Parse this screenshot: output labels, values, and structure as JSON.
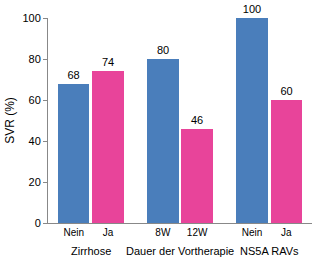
{
  "chart_data": {
    "type": "bar",
    "y_label": "SVR (%)",
    "groups": [
      {
        "label": "Zirrhose",
        "categories": [
          "Nein",
          "Ja"
        ],
        "values": [
          68,
          74
        ],
        "colors": [
          "#4a7ebb",
          "#e8449a"
        ]
      },
      {
        "label": "Dauer der Vortherapie",
        "categories": [
          "8W",
          "12W"
        ],
        "values": [
          80,
          46
        ],
        "colors": [
          "#4a7ebb",
          "#e8449a"
        ]
      },
      {
        "label": "NS5A RAVs",
        "categories": [
          "Nein",
          "Ja"
        ],
        "values": [
          100,
          60
        ],
        "colors": [
          "#4a7ebb",
          "#e8449a"
        ]
      }
    ],
    "ylim": [
      0,
      100
    ],
    "yticks": [
      0,
      20,
      40,
      60,
      80,
      100
    ],
    "grid": false,
    "data_labels": true
  }
}
